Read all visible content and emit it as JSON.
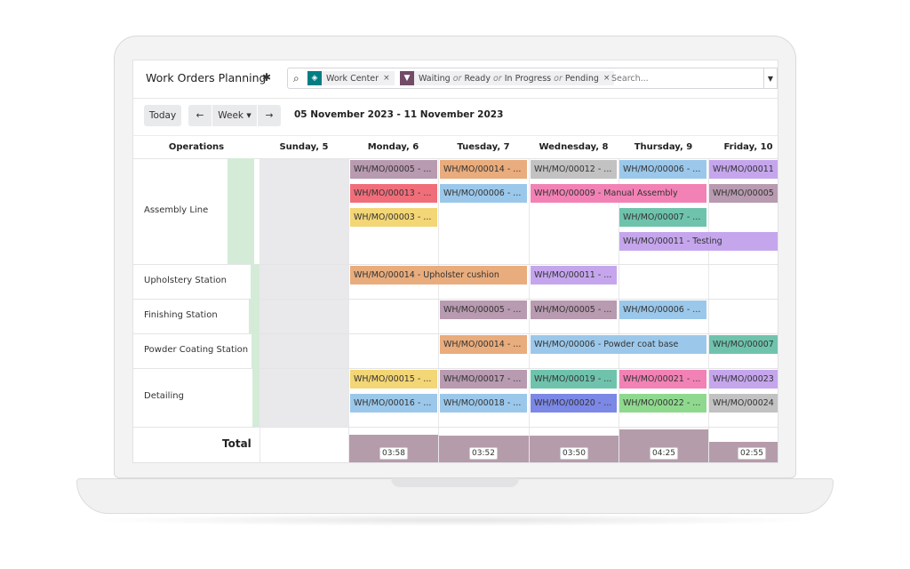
{
  "header": {
    "title": "Work Orders Planning"
  },
  "search": {
    "facets": [
      {
        "icon": "layers-icon",
        "color": "#017e84",
        "label": "Work Center"
      },
      {
        "icon": "filter-icon",
        "color": "#714b67",
        "label": "Waiting or Ready or In Progress or Pending"
      }
    ],
    "facet_filter_parts": [
      "Waiting",
      "or",
      "Ready",
      "or",
      "In Progress",
      "or",
      "Pending"
    ],
    "placeholder": "Search..."
  },
  "toolbar": {
    "today": "Today",
    "scale": "Week",
    "range": "05 November 2023 - 11 November 2023"
  },
  "columns": {
    "operations": "Operations",
    "days": [
      "Sunday, 5",
      "Monday, 6",
      "Tuesday, 7",
      "Wednesday, 8",
      "Thursday, 9",
      "Friday, 10"
    ]
  },
  "rows": [
    "Assembly Line",
    "Upholstery Station",
    "Finishing Station",
    "Powder Coating Station",
    "Detailing"
  ],
  "pills": [
    {
      "text": "WH/MO/00005 - ...",
      "color": "#b89bb0"
    },
    {
      "text": "WH/MO/00014 - ...",
      "color": "#e9ac7c"
    },
    {
      "text": "WH/MO/00012 - ...",
      "color": "#c2c2c2"
    },
    {
      "text": "WH/MO/00006 - ...",
      "color": "#9bc8ea"
    },
    {
      "text": "WH/MO/00011",
      "color": "#c5a6ed"
    },
    {
      "text": "WH/MO/00013 - ...",
      "color": "#f06e7a"
    },
    {
      "text": "WH/MO/00006 - ...",
      "color": "#9bc8ea"
    },
    {
      "text": "WH/MO/00009 - Manual Assembly",
      "color": "#f282b5"
    },
    {
      "text": "WH/MO/00005",
      "color": "#b89bb0"
    },
    {
      "text": "WH/MO/00003 - ...",
      "color": "#f3d675"
    },
    {
      "text": "WH/MO/00007 - ...",
      "color": "#6fc3ad"
    },
    {
      "text": "WH/MO/00011 - Testing",
      "color": "#c5a6ed"
    },
    {
      "text": "WH/MO/00014 - Upholster cushion",
      "color": "#e9ac7c"
    },
    {
      "text": "WH/MO/00011 - ...",
      "color": "#c5a6ed"
    },
    {
      "text": "WH/MO/00005 - ...",
      "color": "#b89bb0"
    },
    {
      "text": "WH/MO/00005 - ...",
      "color": "#b89bb0"
    },
    {
      "text": "WH/MO/00006 - ...",
      "color": "#9bc8ea"
    },
    {
      "text": "WH/MO/00014 - ...",
      "color": "#e9ac7c"
    },
    {
      "text": "WH/MO/00006 - Powder coat base",
      "color": "#9bc8ea"
    },
    {
      "text": "WH/MO/00007",
      "color": "#6fc3ad"
    },
    {
      "text": "WH/MO/00015 - ...",
      "color": "#f3d675"
    },
    {
      "text": "WH/MO/00017 - ...",
      "color": "#b89bb0"
    },
    {
      "text": "WH/MO/00019 - ...",
      "color": "#6fc3ad"
    },
    {
      "text": "WH/MO/00021 - ...",
      "color": "#f282b5"
    },
    {
      "text": "WH/MO/00023",
      "color": "#c5a6ed"
    },
    {
      "text": "WH/MO/00016 - ...",
      "color": "#9bc8ea"
    },
    {
      "text": "WH/MO/00018 - ...",
      "color": "#9bc8ea"
    },
    {
      "text": "WH/MO/00020 - ...",
      "color": "#7c88e6"
    },
    {
      "text": "WH/MO/00022 - ...",
      "color": "#8fd98f"
    },
    {
      "text": "WH/MO/00024",
      "color": "#c2c2c2"
    }
  ],
  "total": {
    "label": "Total",
    "values": [
      "03:58",
      "03:52",
      "03:50",
      "04:25",
      "02:55"
    ],
    "bar_color": "#b59cab"
  }
}
